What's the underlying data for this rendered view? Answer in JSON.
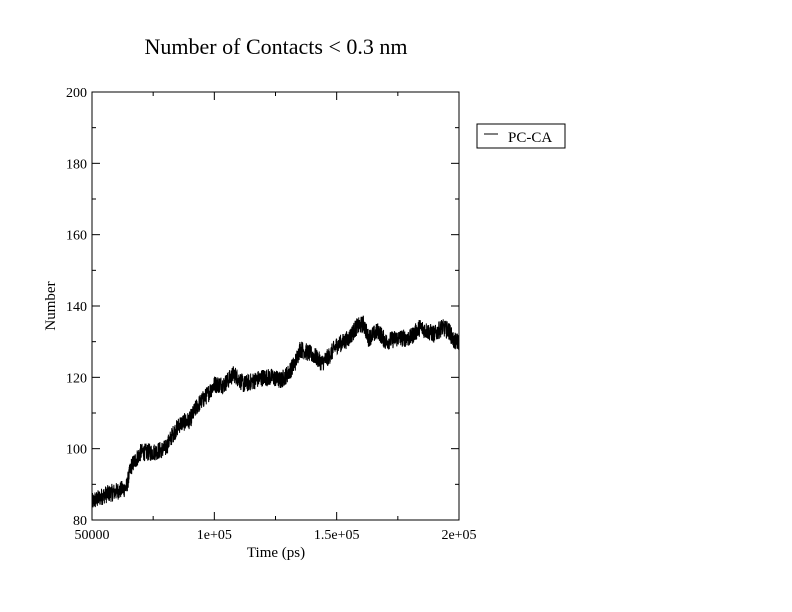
{
  "chart_data": {
    "type": "line",
    "title": "Number of Contacts < 0.3 nm",
    "xlabel": "Time (ps)",
    "ylabel": "Number",
    "xlim": [
      50000,
      200000
    ],
    "ylim": [
      80,
      200
    ],
    "x_ticks": [
      {
        "value": 50000,
        "label": "50000"
      },
      {
        "value": 100000,
        "label": "1e+05"
      },
      {
        "value": 150000,
        "label": "1.5e+05"
      },
      {
        "value": 200000,
        "label": "2e+05"
      }
    ],
    "y_ticks": [
      {
        "value": 80,
        "label": "80"
      },
      {
        "value": 100,
        "label": "100"
      },
      {
        "value": 120,
        "label": "120"
      },
      {
        "value": 140,
        "label": "140"
      },
      {
        "value": 160,
        "label": "160"
      },
      {
        "value": 180,
        "label": "180"
      },
      {
        "value": 200,
        "label": "200"
      }
    ],
    "grid": false,
    "legend_position": "right",
    "series": [
      {
        "name": "PC-CA",
        "color": "#000000",
        "noise_amplitude": 2.5,
        "x": [
          50000,
          55000,
          60000,
          64000,
          66000,
          70000,
          75000,
          80000,
          83000,
          86000,
          90000,
          93000,
          97000,
          100000,
          104000,
          108000,
          112000,
          116000,
          120000,
          124000,
          127000,
          130000,
          133000,
          135000,
          138000,
          141000,
          144000,
          147000,
          150000,
          153000,
          155000,
          158000,
          161000,
          163000,
          167000,
          170000,
          175000,
          180000,
          184000,
          187000,
          190000,
          193000,
          196000,
          198000,
          200000
        ],
        "y": [
          85,
          87,
          88,
          89,
          95,
          99,
          99,
          100,
          104,
          107,
          108,
          112,
          115,
          118,
          118,
          121,
          118,
          119,
          120,
          120,
          119,
          121,
          124,
          128,
          127,
          126,
          124,
          126,
          129,
          130,
          131,
          134,
          135,
          131,
          133,
          130,
          131,
          131,
          134,
          133,
          132,
          134,
          133,
          130,
          130
        ]
      }
    ]
  }
}
